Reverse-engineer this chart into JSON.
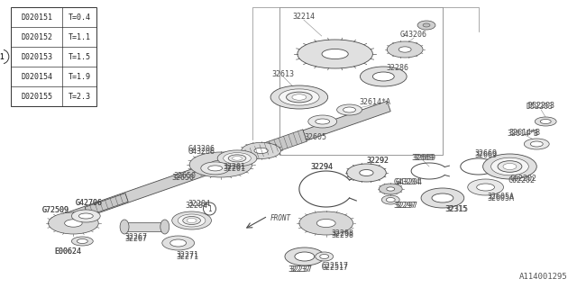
{
  "bg_color": "#ffffff",
  "line_color": "#4a4a4a",
  "label_color": "#4a4a4a",
  "table_rows": [
    [
      "D020151",
      "T=0.4"
    ],
    [
      "D020152",
      "T=1.1"
    ],
    [
      "D020153",
      "T=1.5"
    ],
    [
      "D020154",
      "T=1.9"
    ],
    [
      "D020155",
      "T=2.3"
    ]
  ],
  "watermark": "A114001295",
  "font_size": 6.0
}
